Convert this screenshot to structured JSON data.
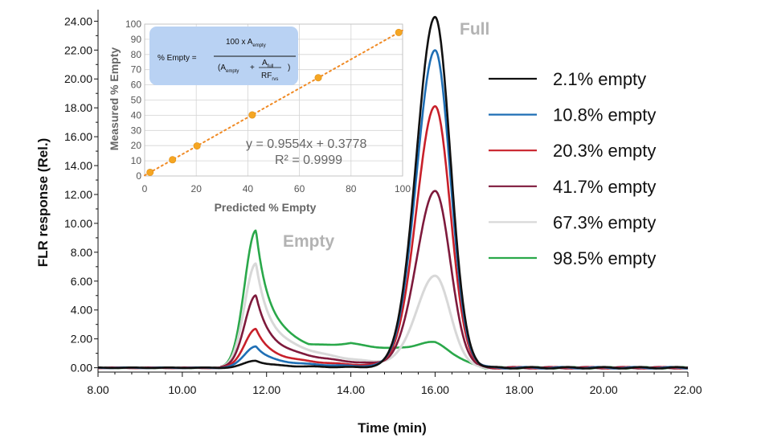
{
  "chart_data": [
    {
      "type": "line",
      "xlabel": "Time (min)",
      "ylabel": "FLR response (Rel.)",
      "xlim": [
        8,
        22
      ],
      "ylim": [
        -0.3,
        24.8
      ],
      "x_ticks": [
        "8.00",
        "10.00",
        "12.00",
        "14.00",
        "16.00",
        "18.00",
        "20.00",
        "22.00"
      ],
      "y_ticks": [
        "0.00",
        "2.00",
        "4.00",
        "6.00",
        "8.00",
        "10.00",
        "12.00",
        "14.00",
        "16.00",
        "18.00",
        "20.00",
        "22.00",
        "24.00"
      ],
      "annotations": [
        "Full",
        "Empty"
      ],
      "legend_position": "right",
      "series": [
        {
          "name": "2.1% empty",
          "color": "#111111",
          "empty_peak": 0.5,
          "full_peak": 24.3
        },
        {
          "name": "10.8% empty",
          "color": "#1f6fb5",
          "empty_peak": 1.5,
          "full_peak": 22.0
        },
        {
          "name": "20.3% empty",
          "color": "#c8202a",
          "empty_peak": 2.7,
          "full_peak": 18.1
        },
        {
          "name": "41.7% empty",
          "color": "#7e1a3c",
          "empty_peak": 5.0,
          "full_peak": 12.2
        },
        {
          "name": "67.3% empty",
          "color": "#d8d8d8",
          "empty_peak": 7.2,
          "full_peak": 6.3
        },
        {
          "name": "98.5% empty",
          "color": "#2aa84a",
          "empty_peak": 9.5,
          "full_peak": 0.8
        }
      ]
    },
    {
      "type": "scatter",
      "xlabel": "Predicted % Empty",
      "ylabel": "Measured % Empty",
      "xlim": [
        0,
        100
      ],
      "ylim": [
        0,
        100
      ],
      "x_ticks": [
        "0",
        "20",
        "40",
        "60",
        "80",
        "100"
      ],
      "y_ticks": [
        "0",
        "10",
        "20",
        "30",
        "40",
        "50",
        "60",
        "70",
        "80",
        "90",
        "100"
      ],
      "points": [
        [
          2.1,
          2.4
        ],
        [
          10.8,
          10.7
        ],
        [
          20.3,
          19.8
        ],
        [
          41.7,
          40.2
        ],
        [
          67.3,
          64.7
        ],
        [
          98.5,
          94.5
        ]
      ],
      "fit": {
        "slope": 0.9554,
        "intercept": 0.3778
      },
      "equation": "y = 0.9554x + 0.3778",
      "r2": "R² = 0.9999",
      "grid": true,
      "point_color": "#f5a623",
      "fit_color": "#f08a24"
    }
  ],
  "formula": {
    "lhs": "% Empty =",
    "numerator": "100 x A",
    "numerator_sub": "empty",
    "denominator_left": "(A",
    "denominator_left_sub": "empty",
    "plus": "+",
    "frac_num": "A",
    "frac_num_sub": "full",
    "frac_den": "RF",
    "frac_den_sub": "rvs",
    "close": ")",
    "box_color": "#b9d2f3"
  }
}
